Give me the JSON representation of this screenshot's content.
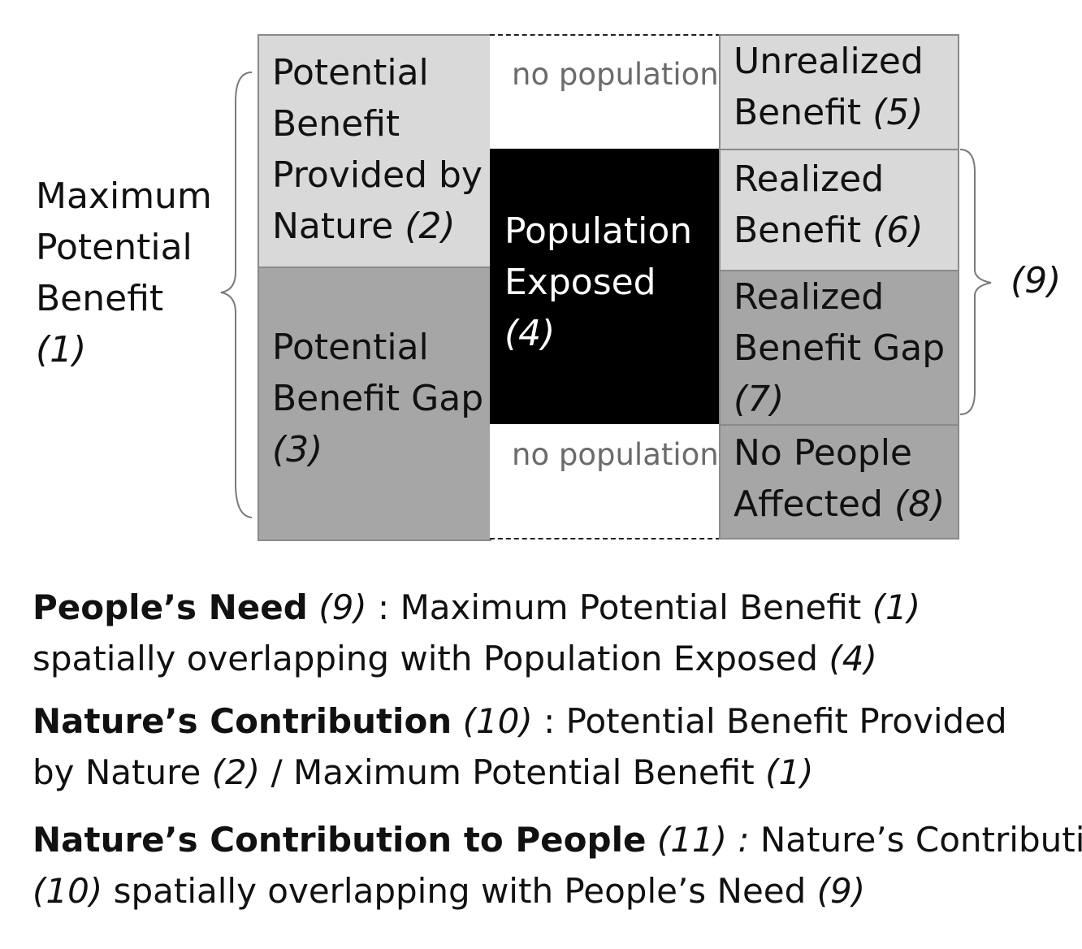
{
  "left_label": {
    "text": "Maximum Potential Benefit",
    "num": "(1)"
  },
  "right_label": {
    "num": "(9)"
  },
  "cells": {
    "potential_benefit": {
      "text": "Potential Benefit Provided by Nature",
      "num": "(2)"
    },
    "potential_gap": {
      "text": "Potential Benefit Gap",
      "num": "(3)"
    },
    "population_exposed": {
      "text": "Population Exposed",
      "num": "(4)"
    },
    "unrealized": {
      "text": "Unrealized Benefit",
      "num": "(5)"
    },
    "realized": {
      "text": "Realized Benefit",
      "num": "(6)"
    },
    "realized_gap": {
      "text": "Realized Benefit Gap",
      "num": "(7)"
    },
    "no_people": {
      "text": "No People Affected",
      "num": "(8)"
    },
    "no_population_top": "no population",
    "no_population_bottom": "no population"
  },
  "definitions": {
    "need": {
      "term": "People’s Need",
      "term_num": "(9)",
      "sep": " : ",
      "line1": "Maximum Potential Benefit",
      "num1": "(1)",
      "line2": "spatially overlapping with Population Exposed",
      "num2": "(4)"
    },
    "contribution": {
      "term": "Nature’s Contribution",
      "term_num": "(10)",
      "sep": " : ",
      "line1": "Potential Benefit Provided",
      "line2a": "by Nature",
      "num1": "(2)",
      "mid": " / Maximum Potential Benefit",
      "num2": "(1)"
    },
    "ncp": {
      "term": "Nature’s Contribution to People",
      "term_num": "(11) :",
      "line1": "Nature’s Contribution",
      "num1": "(10)",
      "line2": "spatially overlapping with People’s Need",
      "num2": "(9)"
    }
  },
  "colors": {
    "light_gray": "#d9d9d9",
    "dark_gray": "#a6a6a6",
    "black": "#000000",
    "muted_text": "#6b6b6b"
  }
}
